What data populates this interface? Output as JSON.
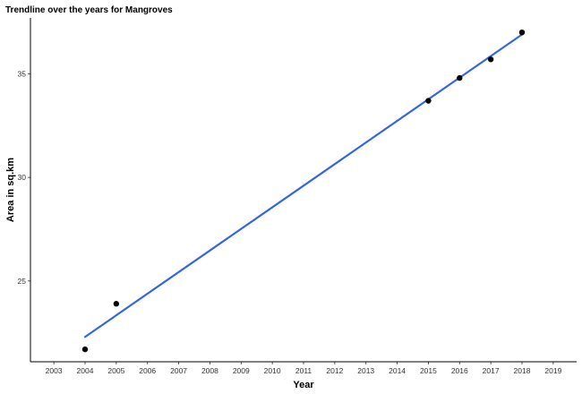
{
  "chart_data": {
    "type": "scatter",
    "title": "Trendline over the years for Mangroves",
    "xlabel": "Year",
    "ylabel": "Area in sq.km",
    "xlim": [
      2002.25,
      2019.75
    ],
    "ylim": [
      21.1,
      37.7
    ],
    "x_ticks": [
      2003,
      2004,
      2005,
      2006,
      2007,
      2008,
      2009,
      2010,
      2011,
      2012,
      2013,
      2014,
      2015,
      2016,
      2017,
      2018,
      2019
    ],
    "y_ticks": [
      25,
      30,
      35
    ],
    "series": [
      {
        "x": [
          2004,
          2005,
          2015,
          2016,
          2017,
          2018
        ],
        "y": [
          21.7,
          23.9,
          33.7,
          34.8,
          35.7,
          37.0
        ],
        "color": "#000000"
      }
    ],
    "trendline": {
      "type": "linear",
      "x": [
        2004,
        2018
      ],
      "y": [
        22.3,
        36.9
      ],
      "color": "#3366e0"
    },
    "grid": false,
    "legend": "none"
  }
}
